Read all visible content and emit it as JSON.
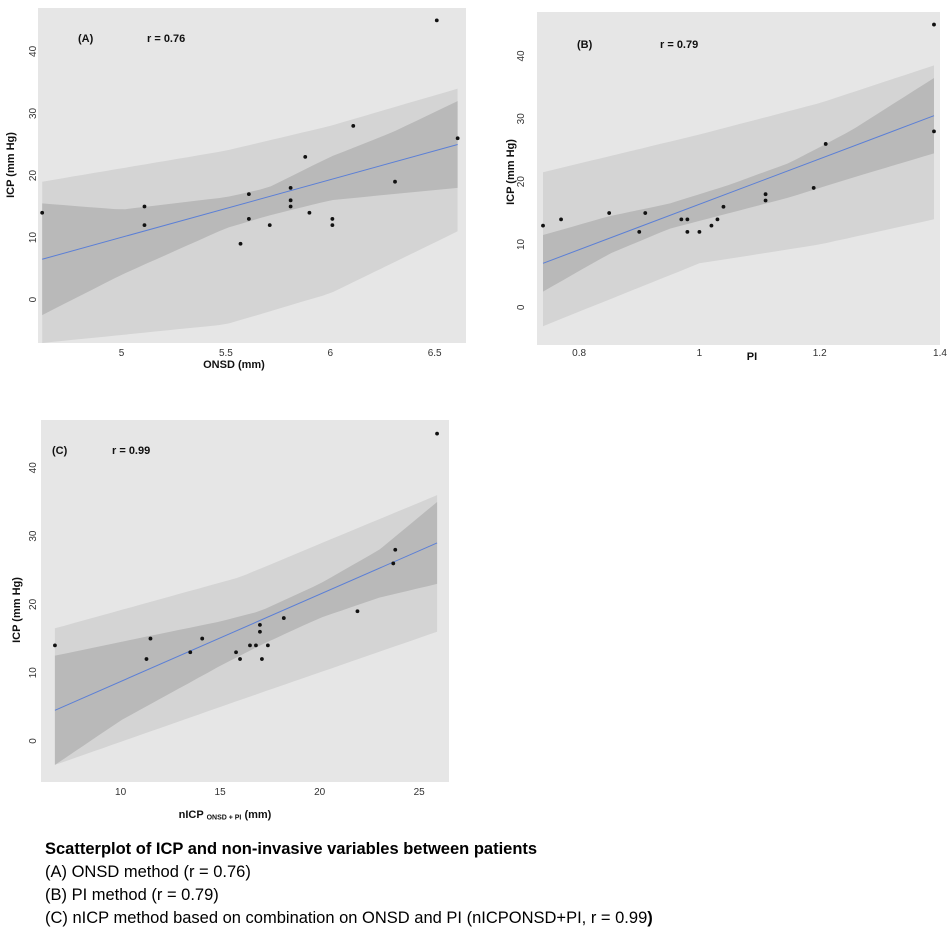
{
  "chart_data": [
    {
      "type": "scatter",
      "panel": "(A)",
      "annotation": "r = 0.76",
      "xlabel": "ONSD (mm)",
      "ylabel": "ICP (mm Hg)",
      "xlim": [
        4.6,
        6.65
      ],
      "ylim": [
        -7,
        47
      ],
      "xticks": [
        5,
        5.5,
        6,
        6.5
      ],
      "xtick_labels": [
        "5",
        "5.5",
        "6",
        "6.5"
      ],
      "yticks": [
        0,
        10,
        20,
        30,
        40
      ],
      "ytick_labels": [
        "0",
        "10",
        "20",
        "30",
        "40"
      ],
      "points": [
        [
          4.62,
          14
        ],
        [
          5.11,
          15
        ],
        [
          5.11,
          12
        ],
        [
          5.57,
          9
        ],
        [
          5.61,
          17
        ],
        [
          5.61,
          13
        ],
        [
          5.71,
          12
        ],
        [
          5.81,
          18
        ],
        [
          5.81,
          16
        ],
        [
          5.81,
          15
        ],
        [
          5.88,
          23
        ],
        [
          5.9,
          14
        ],
        [
          6.01,
          13
        ],
        [
          6.01,
          12
        ],
        [
          6.11,
          28
        ],
        [
          6.31,
          19
        ],
        [
          6.51,
          45
        ],
        [
          6.61,
          26
        ]
      ],
      "fit": {
        "x": [
          4.62,
          6.61
        ],
        "y": [
          6.5,
          25
        ]
      },
      "band_inner": {
        "x": [
          4.62,
          5.0,
          5.5,
          5.7,
          6.0,
          6.3,
          6.61
        ],
        "lower": [
          -2.5,
          4,
          11.5,
          13.5,
          16,
          17,
          18
        ],
        "upper": [
          15.5,
          14.5,
          16.5,
          18,
          23,
          27,
          32
        ]
      },
      "band_outer": {
        "x": [
          4.62,
          5.5,
          6.0,
          6.61
        ],
        "lower": [
          -7,
          -4,
          1,
          11
        ],
        "upper": [
          19,
          24,
          28,
          34
        ]
      },
      "grid": false,
      "legend": "none"
    },
    {
      "type": "scatter",
      "panel": "(B)",
      "annotation": "r = 0.79",
      "xlabel": "PI",
      "ylabel": "ICP (mm Hg)",
      "xlim": [
        0.73,
        1.4
      ],
      "ylim": [
        -6,
        47
      ],
      "xticks": [
        0.8,
        1.0,
        1.2,
        1.4
      ],
      "xtick_labels": [
        "0.8",
        "1",
        "1.2",
        "1.4"
      ],
      "yticks": [
        0,
        10,
        20,
        30,
        40
      ],
      "ytick_labels": [
        "0",
        "10",
        "20",
        "30",
        "40"
      ],
      "points": [
        [
          0.74,
          13
        ],
        [
          0.77,
          14
        ],
        [
          0.85,
          15
        ],
        [
          0.9,
          12
        ],
        [
          0.91,
          15
        ],
        [
          0.97,
          14
        ],
        [
          0.98,
          14
        ],
        [
          0.98,
          12
        ],
        [
          1.0,
          12
        ],
        [
          1.02,
          13
        ],
        [
          1.03,
          14
        ],
        [
          1.04,
          16
        ],
        [
          1.11,
          17
        ],
        [
          1.11,
          18
        ],
        [
          1.19,
          19
        ],
        [
          1.21,
          26
        ],
        [
          1.39,
          45
        ],
        [
          1.39,
          28
        ]
      ],
      "fit": {
        "x": [
          0.74,
          1.39
        ],
        "y": [
          7,
          30.5
        ]
      },
      "band_inner": {
        "x": [
          0.74,
          0.85,
          0.95,
          1.05,
          1.15,
          1.25,
          1.39
        ],
        "lower": [
          2.5,
          8.5,
          12.5,
          15,
          17.5,
          20.5,
          24.5
        ],
        "upper": [
          11.5,
          14.5,
          16.5,
          19.5,
          23,
          28,
          36.5
        ]
      },
      "band_outer": {
        "x": [
          0.74,
          1.0,
          1.2,
          1.39
        ],
        "lower": [
          -3,
          7,
          10,
          14
        ],
        "upper": [
          21.5,
          27.5,
          32.5,
          38.5
        ]
      },
      "grid": false,
      "legend": "none"
    },
    {
      "type": "scatter",
      "panel": "(C)",
      "annotation": "r = 0.99",
      "xlabel_main": "nICP",
      "xlabel_sub": "ONSD + PI",
      "xlabel_unit": "(mm)",
      "ylabel": "ICP (mm Hg)",
      "xlim": [
        6,
        26.5
      ],
      "ylim": [
        -6,
        47
      ],
      "xticks": [
        10,
        15,
        20,
        25
      ],
      "xtick_labels": [
        "10",
        "15",
        "20",
        "25"
      ],
      "yticks": [
        0,
        10,
        20,
        30,
        40
      ],
      "ytick_labels": [
        "0",
        "10",
        "20",
        "30",
        "40"
      ],
      "points": [
        [
          6.7,
          14
        ],
        [
          11.3,
          12
        ],
        [
          11.5,
          15
        ],
        [
          13.5,
          13
        ],
        [
          14.1,
          15
        ],
        [
          15.8,
          13
        ],
        [
          16.0,
          12
        ],
        [
          16.5,
          14
        ],
        [
          16.8,
          14
        ],
        [
          17.0,
          16
        ],
        [
          17.0,
          17
        ],
        [
          17.1,
          12
        ],
        [
          17.4,
          14
        ],
        [
          18.2,
          18
        ],
        [
          21.9,
          19
        ],
        [
          23.7,
          26
        ],
        [
          23.8,
          28
        ],
        [
          25.9,
          45
        ]
      ],
      "fit": {
        "x": [
          6.7,
          25.9
        ],
        "y": [
          4.5,
          29
        ]
      },
      "band_inner": {
        "x": [
          6.7,
          10,
          15,
          17,
          20,
          23,
          25.9
        ],
        "lower": [
          -3.5,
          3,
          11,
          14,
          18,
          21,
          23
        ],
        "upper": [
          12.5,
          14.5,
          17.5,
          19,
          23,
          28,
          35
        ]
      },
      "band_outer": {
        "x": [
          6.7,
          16,
          25.9
        ],
        "lower": [
          -3.5,
          6,
          16
        ],
        "upper": [
          16.5,
          24,
          36
        ]
      },
      "grid": false,
      "legend": "none"
    }
  ],
  "caption": {
    "title": "Scatterplot of ICP and non-invasive variables between patients",
    "line_a": "(A) ONSD method (r = 0.76)",
    "line_b": "(B) PI method (r = 0.79)",
    "line_c": "(C) nICP method based on combination on ONSD and PI (nICPONSD+PI, r = 0.99",
    "line_c_end": ")"
  }
}
